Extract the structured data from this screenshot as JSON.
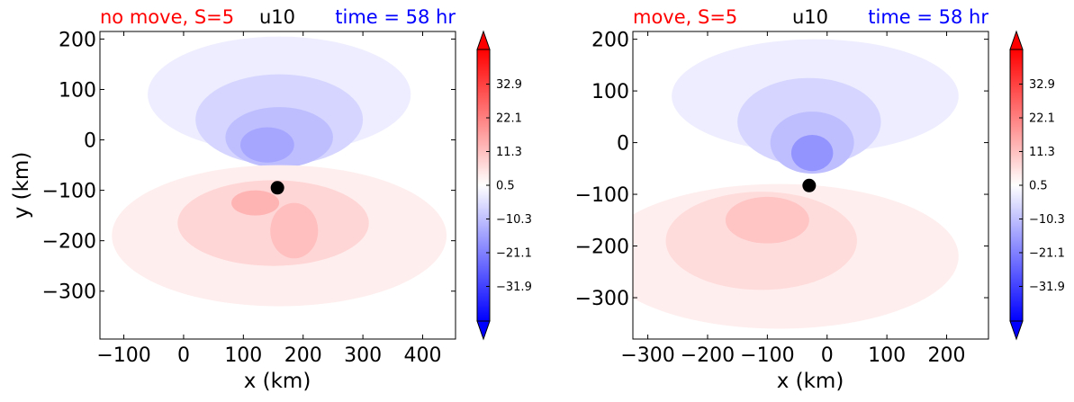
{
  "colors": {
    "left_title": "#ff0000",
    "center_title": "#000000",
    "right_title": "#0000ff",
    "positive": "#ff0000",
    "negative": "#0000ff",
    "marker": "#000000"
  },
  "chart_data": [
    {
      "type": "contour",
      "variable": "u10",
      "titles": {
        "left": "no move, S=5",
        "center": "u10",
        "right": "time = 58 hr"
      },
      "xlabel": "x (km)",
      "ylabel": "y (km)",
      "xlim": [
        -140,
        455
      ],
      "ylim": [
        -395,
        215
      ],
      "xticks": [
        -100,
        0,
        100,
        200,
        300,
        400
      ],
      "xtick_labels": [
        "−100",
        "0",
        "100",
        "200",
        "300",
        "400"
      ],
      "yticks": [
        200,
        100,
        0,
        -100,
        -200,
        -300
      ],
      "ytick_labels": [
        "200",
        "100",
        "0",
        "−100",
        "−200",
        "−300"
      ],
      "center_marker": {
        "x": 157,
        "y": -95
      },
      "colorbar": {
        "range": [
          -43,
          44
        ],
        "extend": "both",
        "ticks": [
          32.9,
          22.1,
          11.3,
          0.5,
          -10.3,
          -21.1,
          -31.9
        ],
        "tick_labels": [
          "32.9",
          "22.1",
          "11.3",
          "0.5",
          "−10.3",
          "−21.1",
          "−31.9"
        ]
      },
      "features": [
        {
          "x": 160,
          "y": 90,
          "rx": 220,
          "ry": 115,
          "value": -3
        },
        {
          "x": 160,
          "y": 40,
          "rx": 140,
          "ry": 90,
          "value": -7
        },
        {
          "x": 160,
          "y": 5,
          "rx": 90,
          "ry": 60,
          "value": -11
        },
        {
          "x": 140,
          "y": -10,
          "rx": 45,
          "ry": 35,
          "value": -15
        },
        {
          "x": 160,
          "y": -190,
          "rx": 280,
          "ry": 140,
          "value": 3
        },
        {
          "x": 150,
          "y": -165,
          "rx": 160,
          "ry": 85,
          "value": 7
        },
        {
          "x": 120,
          "y": -125,
          "rx": 40,
          "ry": 25,
          "value": 13
        },
        {
          "x": 185,
          "y": -180,
          "rx": 40,
          "ry": 55,
          "value": 11
        }
      ]
    },
    {
      "type": "contour",
      "variable": "u10",
      "titles": {
        "left": "move, S=5",
        "center": "u10",
        "right": "time = 58 hr"
      },
      "xlabel": "x (km)",
      "ylabel": "",
      "xlim": [
        -325,
        270
      ],
      "ylim": [
        -380,
        215
      ],
      "xticks": [
        -300,
        -200,
        -100,
        0,
        100,
        200
      ],
      "xtick_labels": [
        "−300",
        "−200",
        "−100",
        "0",
        "100",
        "200"
      ],
      "yticks": [
        200,
        100,
        0,
        -100,
        -200,
        -300
      ],
      "ytick_labels": [
        "200",
        "100",
        "0",
        "−100",
        "−200",
        "−300"
      ],
      "center_marker": {
        "x": -30,
        "y": -83
      },
      "colorbar": {
        "range": [
          -43,
          44
        ],
        "extend": "both",
        "ticks": [
          32.9,
          22.1,
          11.3,
          0.5,
          -10.3,
          -21.1,
          -31.9
        ],
        "tick_labels": [
          "32.9",
          "22.1",
          "11.3",
          "0.5",
          "−10.3",
          "−21.1",
          "−31.9"
        ]
      },
      "features": [
        {
          "x": -20,
          "y": 90,
          "rx": 240,
          "ry": 110,
          "value": -3
        },
        {
          "x": -30,
          "y": 40,
          "rx": 120,
          "ry": 85,
          "value": -7
        },
        {
          "x": -25,
          "y": 0,
          "rx": 70,
          "ry": 60,
          "value": -11
        },
        {
          "x": -25,
          "y": -20,
          "rx": 35,
          "ry": 35,
          "value": -18
        },
        {
          "x": -80,
          "y": -220,
          "rx": 300,
          "ry": 140,
          "value": 3
        },
        {
          "x": -110,
          "y": -190,
          "rx": 160,
          "ry": 95,
          "value": 6
        },
        {
          "x": -100,
          "y": -150,
          "rx": 70,
          "ry": 45,
          "value": 10
        }
      ]
    }
  ]
}
